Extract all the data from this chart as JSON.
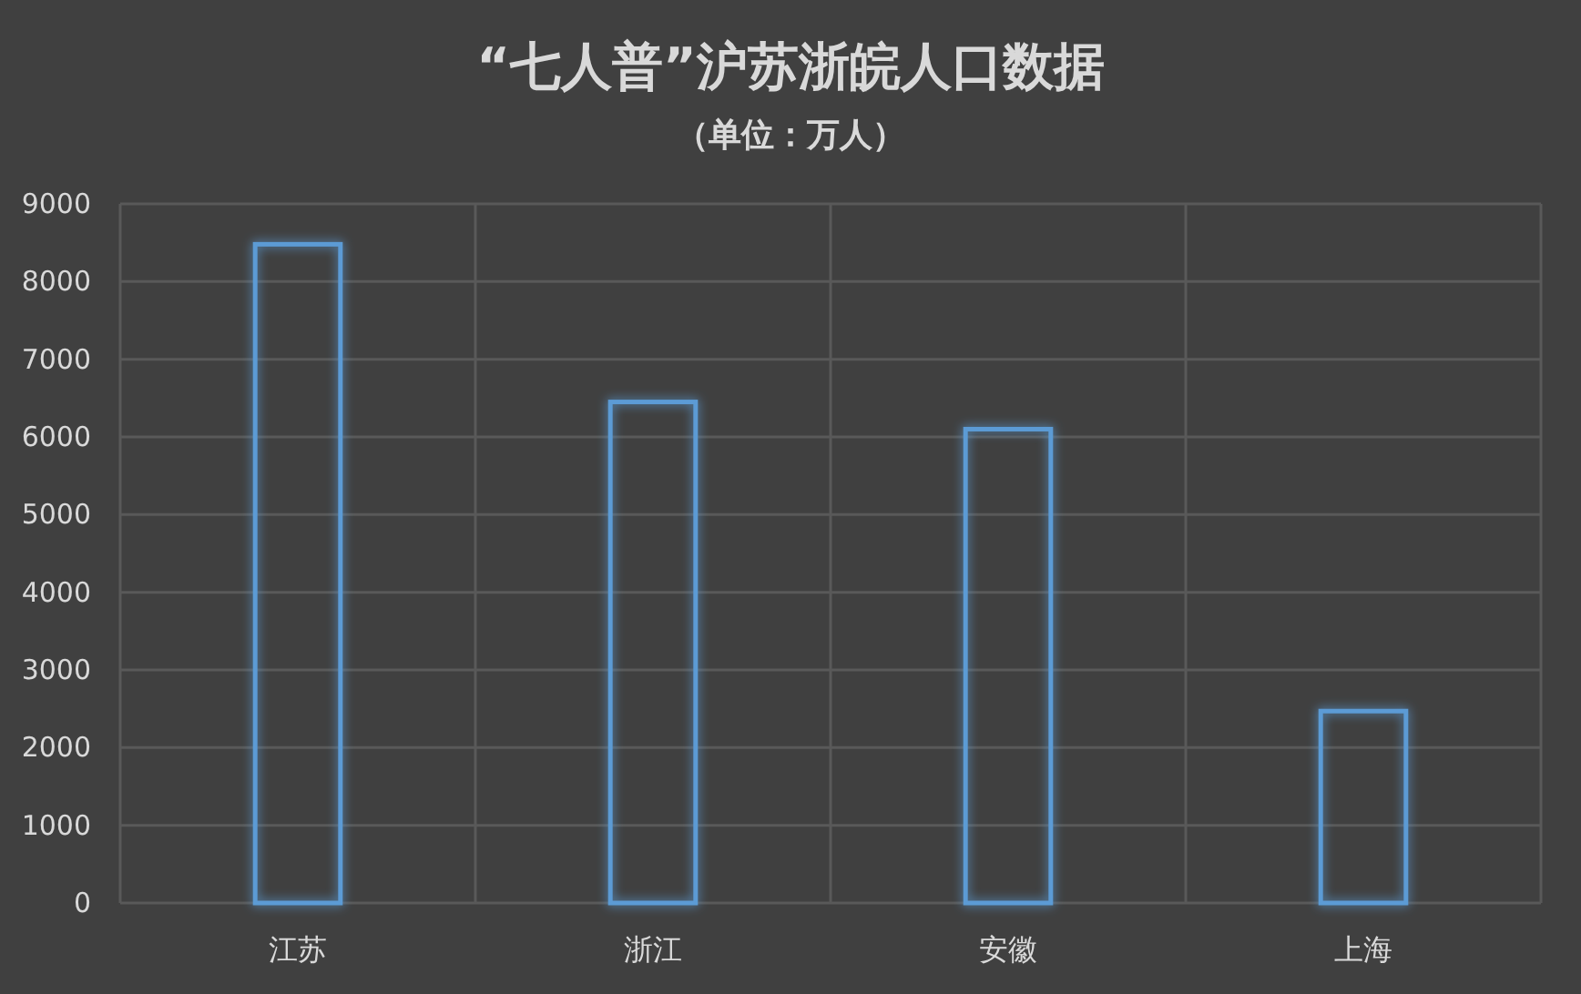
{
  "chart_data": {
    "type": "bar",
    "title": "“七人普”沪苏浙皖人口数据",
    "subtitle": "（单位：万人）",
    "categories": [
      "江苏",
      "浙江",
      "安徽",
      "上海"
    ],
    "values": [
      8480,
      6450,
      6100,
      2470
    ],
    "color": "#5b9bd5",
    "ylim": [
      0,
      9000
    ],
    "yticks": [
      0,
      1000,
      2000,
      3000,
      4000,
      5000,
      6000,
      7000,
      8000,
      9000
    ],
    "grid": true
  }
}
